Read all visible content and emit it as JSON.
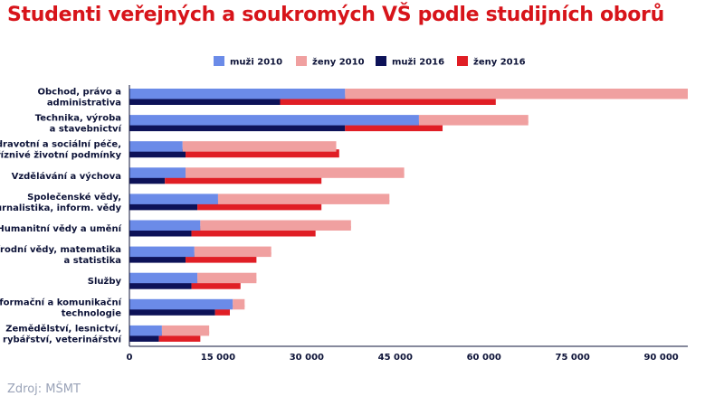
{
  "page": {
    "title": "Studenti veřejných a soukromých VŠ podle studijních oborů",
    "source": "Zdroj: MŠMT"
  },
  "chart_data": {
    "type": "bar",
    "orientation": "horizontal",
    "stacked": true,
    "title": "Studenti veřejných a soukromých VŠ podle studijních oborů",
    "xlabel": "",
    "ylabel": "",
    "xlim": [
      0,
      95000
    ],
    "xticks": [
      0,
      15000,
      30000,
      45000,
      60000,
      75000,
      90000
    ],
    "xtick_labels": [
      "0",
      "15 000",
      "30 000",
      "45 000",
      "60 000",
      "75 000",
      "90 000"
    ],
    "grid": false,
    "legend_position": "top-center",
    "categories": [
      [
        "Obchod, právo a",
        "administrativa"
      ],
      [
        "Technika, výroba",
        "a stavebnictví"
      ],
      [
        "Zdravotní a sociální péče,",
        "příznivé životní podmínky"
      ],
      [
        "Vzdělávání a výchova"
      ],
      [
        "Společenské vědy,",
        "žurnalistika, inform. vědy"
      ],
      [
        "Humanitní vědy a umění"
      ],
      [
        "Přírodní vědy, matematika",
        "a statistika"
      ],
      [
        "Služby"
      ],
      [
        "Informační a komunikační",
        "technologie"
      ],
      [
        "Zemědělství, lesnictví,",
        "rybářství, veterinářství"
      ]
    ],
    "year_groups": [
      {
        "year": "2010",
        "series": [
          {
            "name": "muži 2010",
            "color": "#6b8be8",
            "values": [
              36500,
              49000,
              9000,
              9500,
              15000,
              12000,
              11000,
              11500,
              17500,
              5500
            ]
          },
          {
            "name": "ženy 2010",
            "color": "#f0a0a0",
            "values": [
              58000,
              18500,
              26000,
              37000,
              29000,
              25500,
              13000,
              10000,
              2000,
              8000
            ]
          }
        ]
      },
      {
        "year": "2016",
        "series": [
          {
            "name": "muži 2016",
            "color": "#0d1258",
            "values": [
              25500,
              36500,
              9500,
              6000,
              11500,
              10500,
              9500,
              10500,
              14500,
              5000
            ]
          },
          {
            "name": "ženy 2016",
            "color": "#e01e25",
            "values": [
              36500,
              16500,
              26000,
              26500,
              21000,
              21000,
              12000,
              8300,
              2500,
              7000
            ]
          }
        ]
      }
    ],
    "legend": [
      {
        "label": "muži 2010",
        "color": "#6b8be8"
      },
      {
        "label": "ženy 2010",
        "color": "#f0a0a0"
      },
      {
        "label": "muži 2016",
        "color": "#0d1258"
      },
      {
        "label": "ženy 2016",
        "color": "#e01e25"
      }
    ]
  }
}
